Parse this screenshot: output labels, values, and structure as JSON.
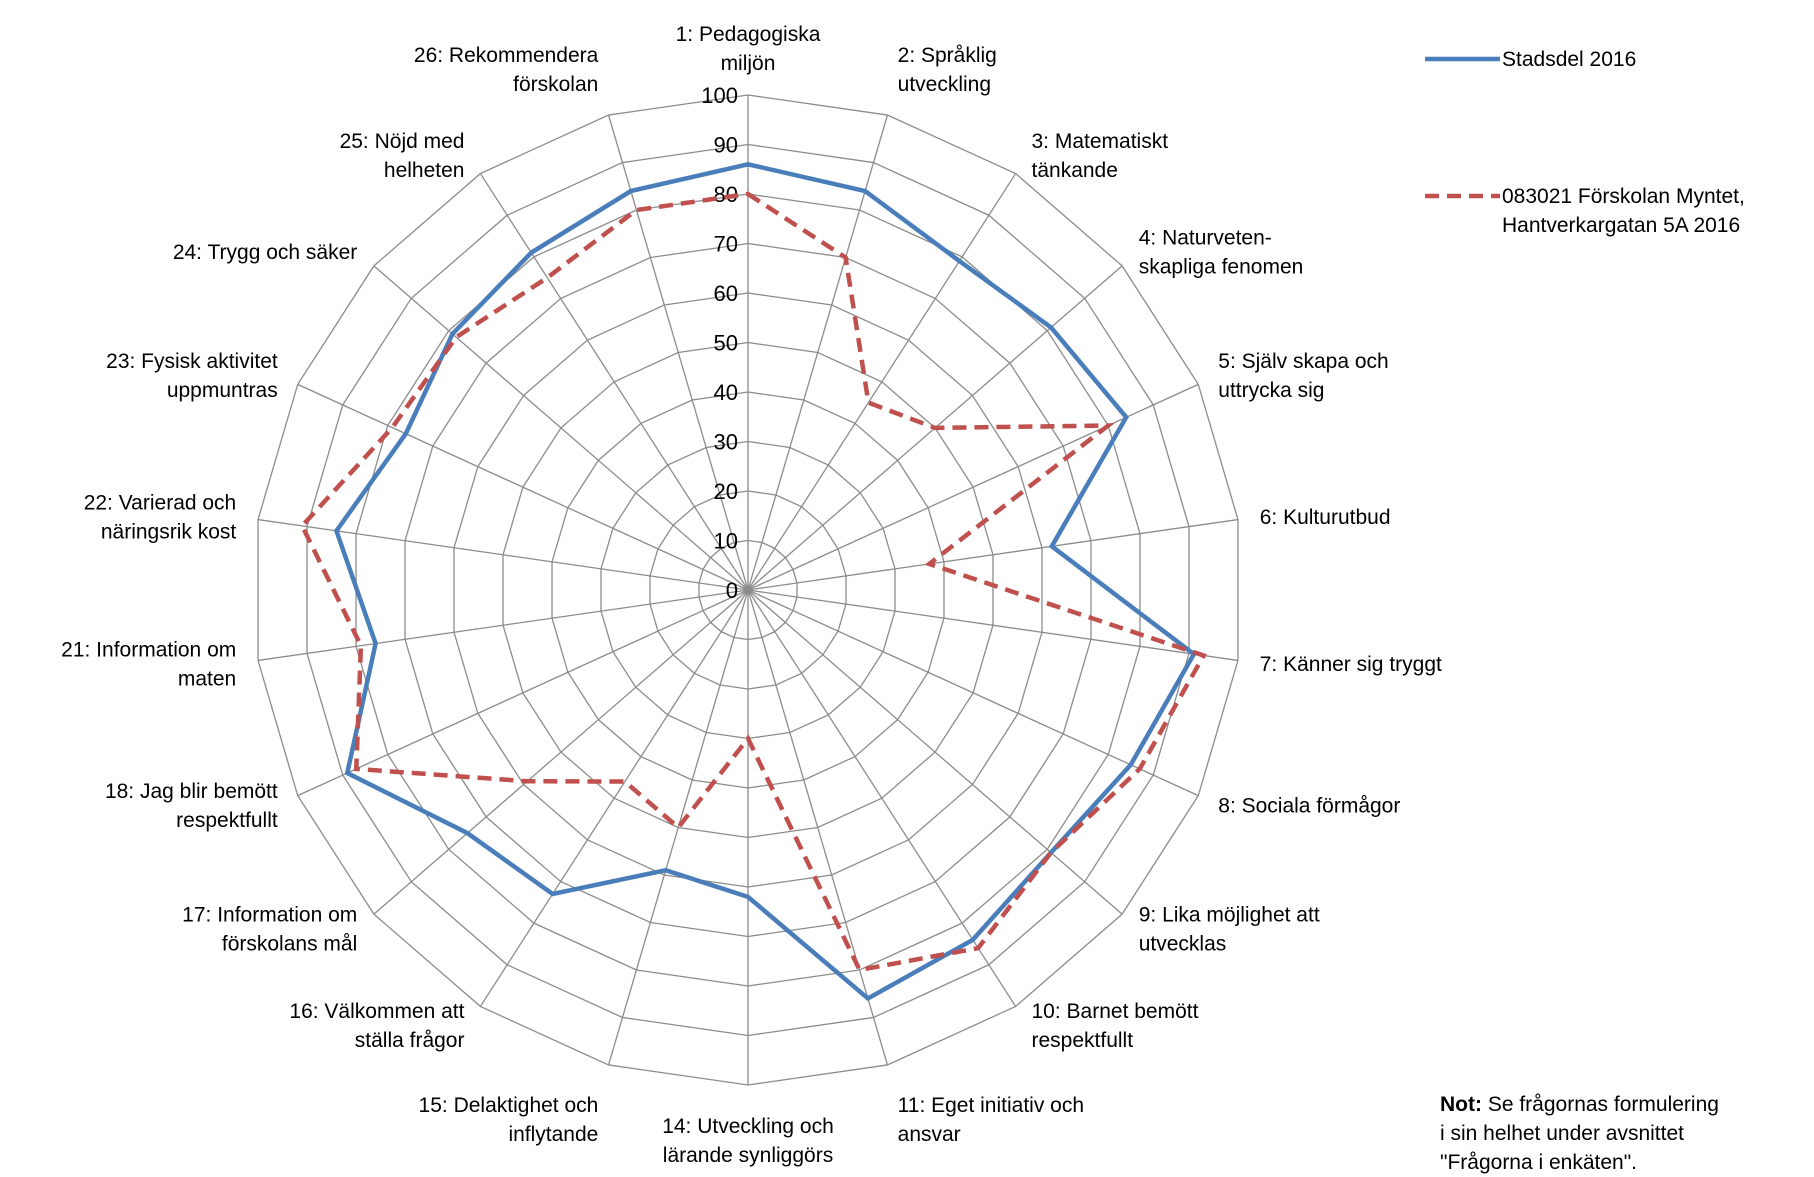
{
  "chart_data": {
    "type": "radar",
    "ylim": [
      0,
      100
    ],
    "ticks": [
      "0",
      "10",
      "20",
      "30",
      "40",
      "50",
      "60",
      "70",
      "80",
      "90",
      "100"
    ],
    "grid": true,
    "legend_position": "top-right",
    "categories": [
      [
        "1: Pedagogiska",
        "miljön"
      ],
      [
        "2: Språklig",
        "utveckling"
      ],
      [
        "3: Matematiskt",
        "tänkande"
      ],
      [
        "4: Naturveten-",
        "skapliga fenomen"
      ],
      [
        "5: Själv skapa och",
        "uttrycka sig"
      ],
      [
        "6: Kulturutbud"
      ],
      [
        "7: Känner sig tryggt"
      ],
      [
        "8: Sociala förmågor"
      ],
      [
        "9: Lika möjlighet att",
        "utvecklas"
      ],
      [
        "10: Barnet bemött",
        "respektfullt"
      ],
      [
        "11: Eget initiativ och",
        "ansvar"
      ],
      [
        "14: Utveckling och",
        "lärande synliggörs"
      ],
      [
        "15: Delaktighet och",
        "inflytande"
      ],
      [
        "16: Välkommen att",
        "ställa frågor"
      ],
      [
        "17: Information om",
        "förskolans mål"
      ],
      [
        "18: Jag blir bemött",
        "respektfullt"
      ],
      [
        "21: Information om",
        "maten"
      ],
      [
        "22: Varierad och",
        "näringsrik kost"
      ],
      [
        "23: Fysisk aktivitet",
        "uppmuntras"
      ],
      [
        "24: Trygg och säker"
      ],
      [
        "25: Nöjd med",
        "helheten"
      ],
      [
        "26: Rekommendera",
        "förskolan"
      ]
    ],
    "series": [
      {
        "name": "Stadsdel 2016",
        "color": "#4a7ebb",
        "dash": "solid",
        "values": [
          86,
          84,
          79,
          81,
          84,
          62,
          91,
          85,
          81,
          84,
          86,
          62,
          59,
          73,
          75,
          89,
          76,
          84,
          76,
          79,
          81,
          84
        ]
      },
      {
        "name": "083021 Förskolan Myntet, Hantverkargatan 5A 2016",
        "name_lines": [
          "083021 Förskolan Myntet,",
          "Hantverkargatan 5A 2016"
        ],
        "color": "#c0504d",
        "dash": "dashed",
        "values": [
          80,
          70,
          45,
          50,
          80,
          37,
          93,
          87,
          81,
          86,
          80,
          30,
          50,
          46,
          59,
          87,
          79,
          91,
          79,
          78,
          75,
          80
        ]
      }
    ]
  },
  "note": {
    "bold": "Not:",
    "lines": [
      " Se frågornas formulering",
      "i sin helhet under avsnittet",
      "\"Frågorna i enkäten\"."
    ]
  }
}
